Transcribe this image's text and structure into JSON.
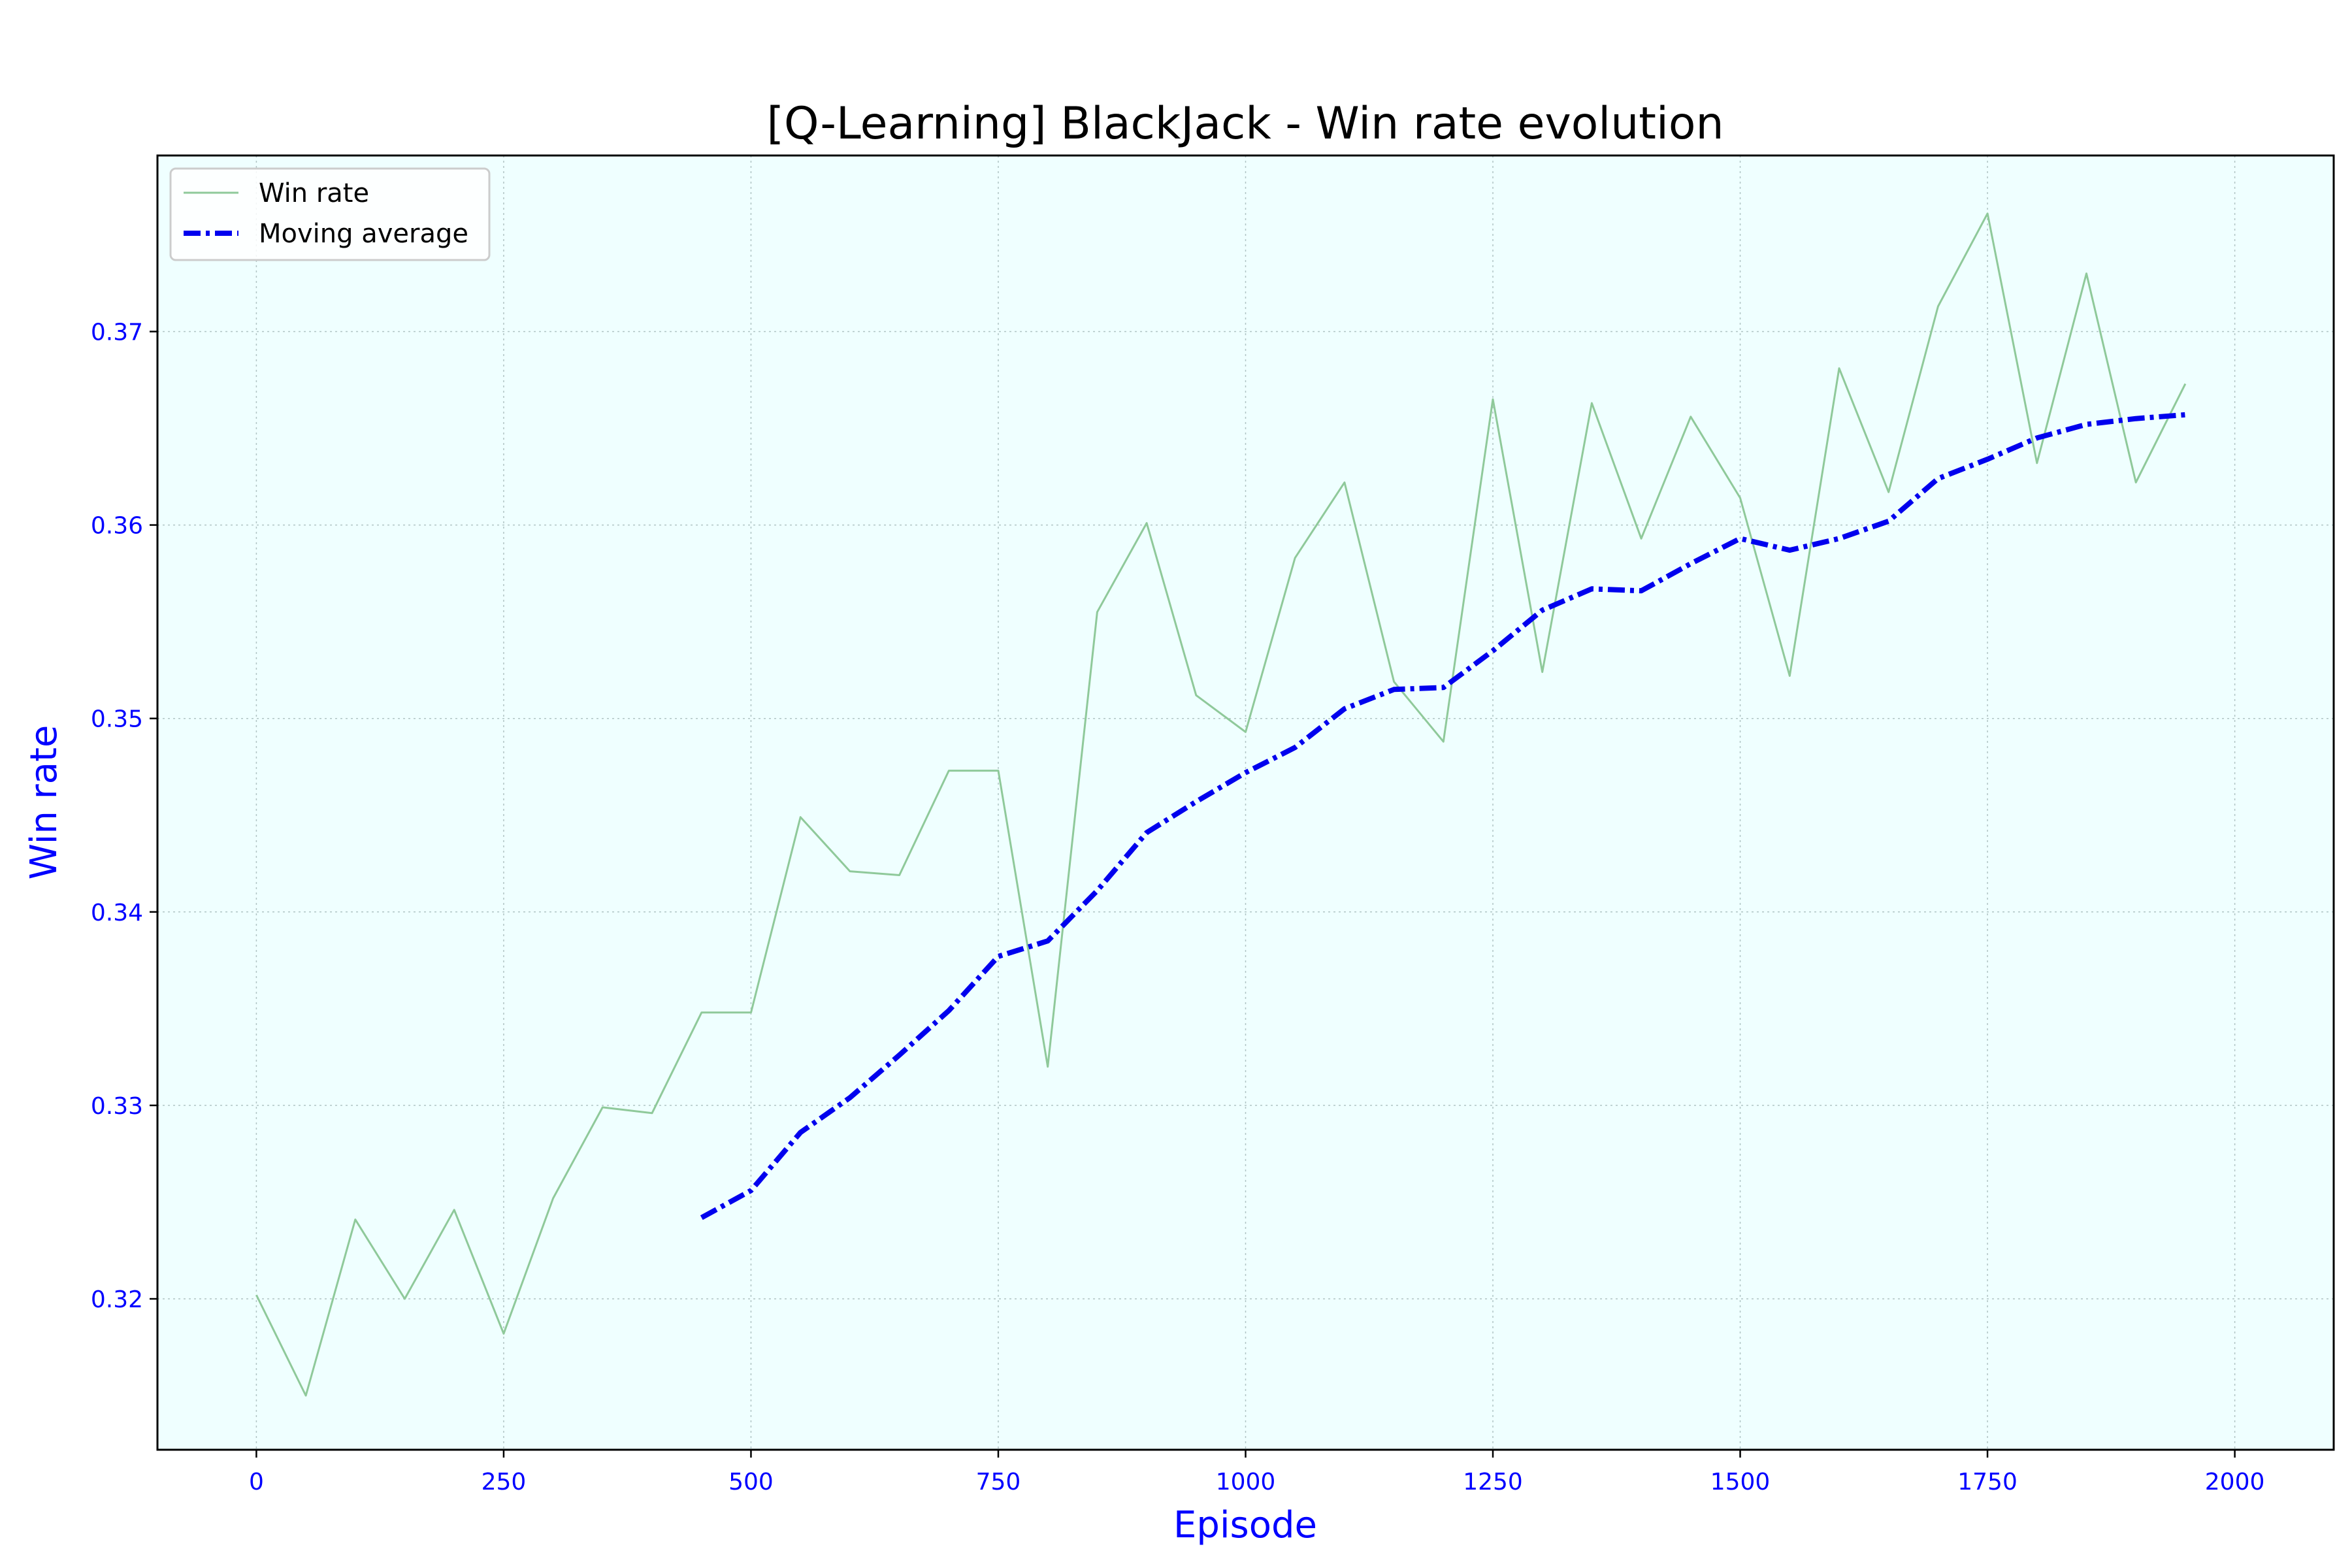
{
  "colors": {
    "plot_background": "#efffff",
    "grid": "#b0c4c4",
    "axis_text": "#0000ff",
    "title_text": "#000000",
    "win_rate_line": "#8fc99a",
    "moving_average_line": "#0000ee"
  },
  "chart_data": {
    "type": "line",
    "title": "[Q-Learning] BlackJack - Win rate evolution",
    "xlabel": "Episode",
    "ylabel": "Win rate",
    "xlim": [
      -100,
      2100
    ],
    "ylim": [
      0.3122,
      0.3791
    ],
    "xticks": [
      0,
      250,
      500,
      750,
      1000,
      1250,
      1500,
      1750,
      2000
    ],
    "yticks": [
      0.32,
      0.33,
      0.34,
      0.35,
      0.36,
      0.37
    ],
    "ytick_labels": [
      "0.32",
      "0.33",
      "0.34",
      "0.35",
      "0.36",
      "0.37"
    ],
    "grid": true,
    "legend_position": "top-left",
    "series": [
      {
        "name": "Win rate",
        "style": "solid",
        "x": [
          0,
          50,
          100,
          150,
          200,
          250,
          300,
          350,
          400,
          450,
          500,
          550,
          600,
          650,
          700,
          750,
          800,
          850,
          900,
          950,
          1000,
          1050,
          1100,
          1150,
          1200,
          1250,
          1300,
          1350,
          1400,
          1450,
          1500,
          1550,
          1600,
          1650,
          1700,
          1750,
          1800,
          1850,
          1900,
          1950
        ],
        "y": [
          0.3202,
          0.315,
          0.3241,
          0.32,
          0.3246,
          0.3182,
          0.3252,
          0.3299,
          0.3296,
          0.3348,
          0.3348,
          0.3449,
          0.3421,
          0.3419,
          0.3473,
          0.3473,
          0.332,
          0.3555,
          0.3601,
          0.3512,
          0.3493,
          0.3583,
          0.3622,
          0.3519,
          0.3488,
          0.3665,
          0.3524,
          0.3663,
          0.3593,
          0.3656,
          0.3614,
          0.3522,
          0.3681,
          0.3617,
          0.3713,
          0.3761,
          0.3632,
          0.373,
          0.3622,
          0.3673
        ]
      },
      {
        "name": "Moving average",
        "style": "dash-dot",
        "x": [
          450,
          500,
          550,
          600,
          650,
          700,
          750,
          800,
          850,
          900,
          950,
          1000,
          1050,
          1100,
          1150,
          1200,
          1250,
          1300,
          1350,
          1400,
          1450,
          1500,
          1550,
          1600,
          1650,
          1700,
          1750,
          1800,
          1850,
          1900,
          1950
        ],
        "y": [
          0.3242,
          0.3256,
          0.3286,
          0.3304,
          0.3326,
          0.3349,
          0.3377,
          0.3385,
          0.3411,
          0.3441,
          0.3457,
          0.3472,
          0.3485,
          0.3505,
          0.3515,
          0.3516,
          0.3535,
          0.3556,
          0.3567,
          0.3566,
          0.358,
          0.3593,
          0.3587,
          0.3593,
          0.3602,
          0.3624,
          0.3634,
          0.3645,
          0.3652,
          0.3655,
          0.3657
        ]
      }
    ]
  }
}
